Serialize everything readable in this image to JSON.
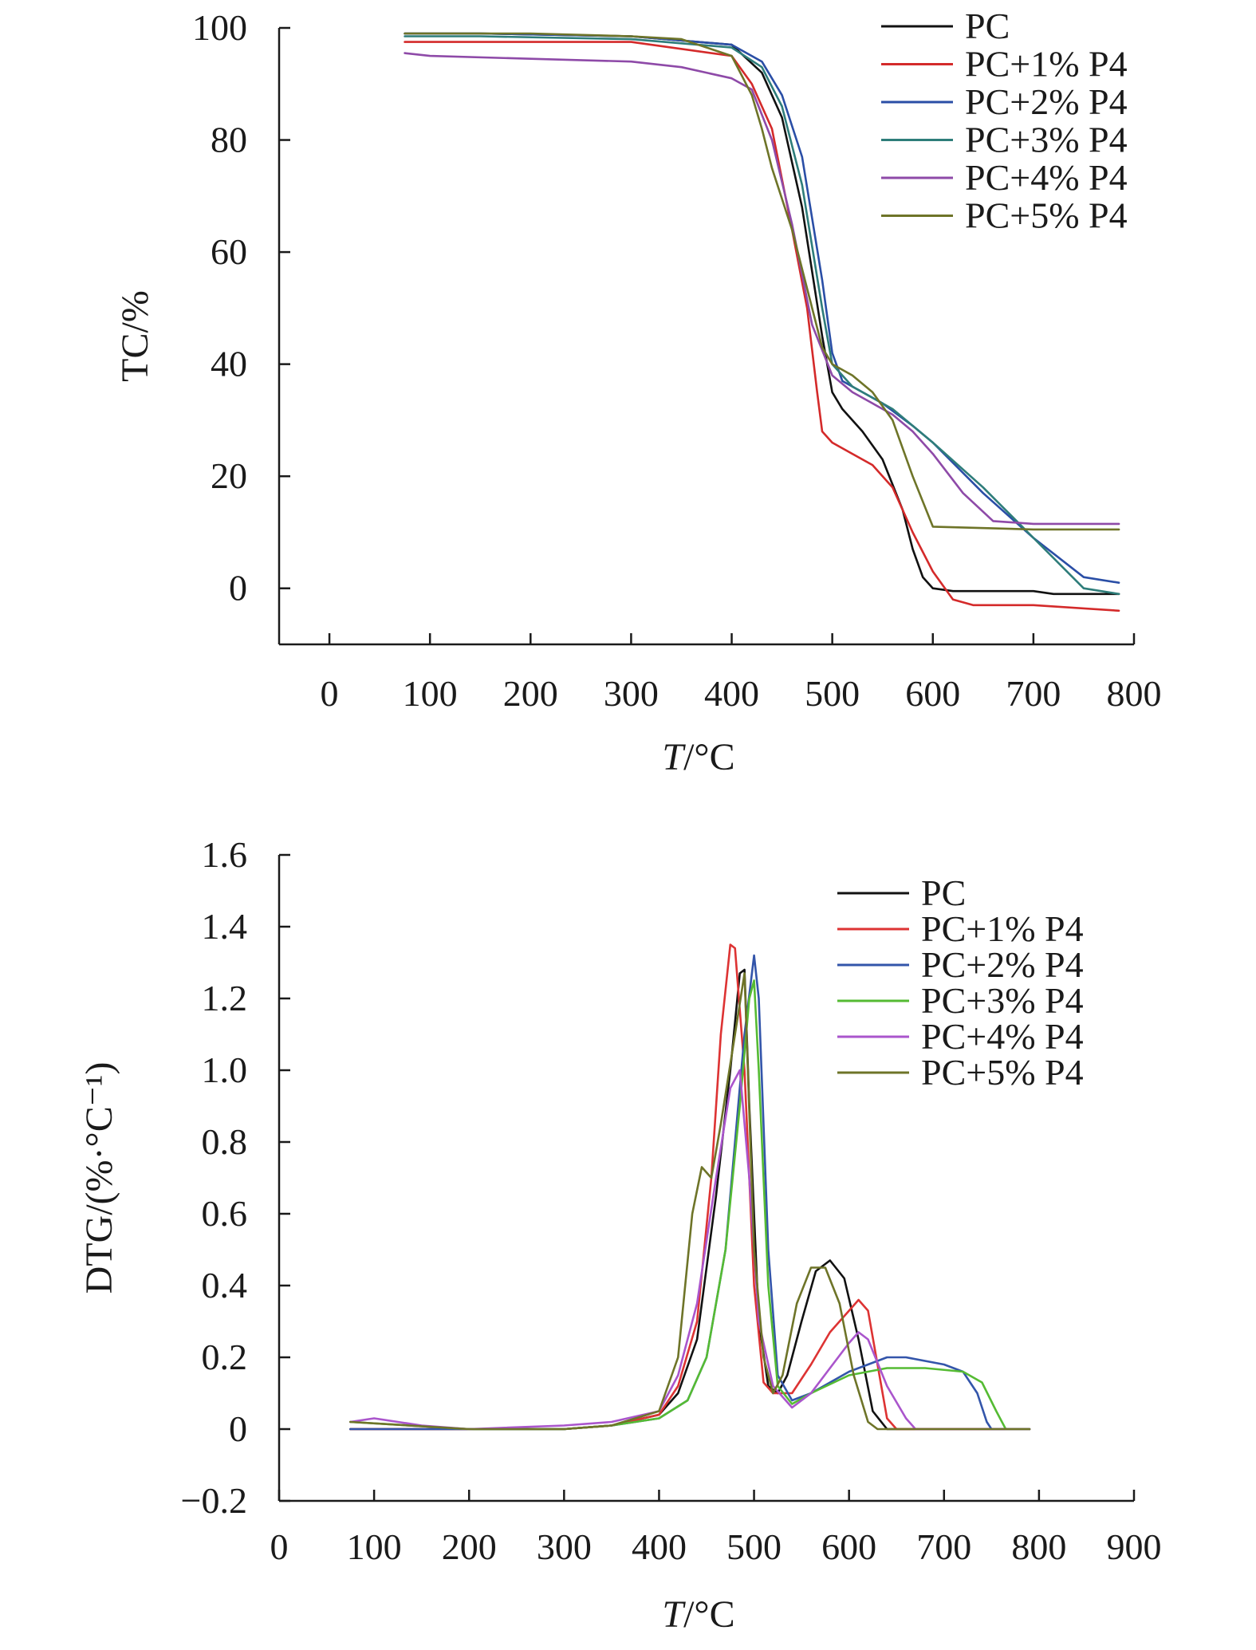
{
  "chart_data": [
    {
      "type": "line",
      "ylabel": "TC/%",
      "xlabel_italic": "T",
      "xlabel_unit": "/°C",
      "xlim": [
        -50,
        800
      ],
      "ylim": [
        -10,
        100
      ],
      "xticks": [
        0,
        100,
        200,
        300,
        400,
        500,
        600,
        700,
        800
      ],
      "yticks": [
        0,
        20,
        40,
        60,
        80,
        100
      ],
      "tick_labels_x": [
        "0",
        "100",
        "200",
        "300",
        "400",
        "500",
        "600",
        "700",
        "800"
      ],
      "tick_labels_y": [
        "0",
        "20",
        "40",
        "60",
        "80",
        "100"
      ],
      "legend_position": "top-right",
      "series": [
        {
          "name": "PC",
          "color": "#111111",
          "x": [
            75,
            150,
            300,
            400,
            430,
            450,
            470,
            490,
            500,
            510,
            530,
            550,
            570,
            580,
            590,
            600,
            620,
            700,
            720,
            785
          ],
          "y": [
            99,
            99,
            98.5,
            97,
            92,
            84,
            68,
            45,
            35,
            32,
            28,
            23,
            14,
            7,
            2,
            0,
            -0.5,
            -0.5,
            -1,
            -1
          ]
        },
        {
          "name": "PC+1% P4",
          "color": "#d42a2a",
          "x": [
            75,
            150,
            300,
            400,
            420,
            440,
            460,
            475,
            485,
            490,
            500,
            520,
            540,
            560,
            580,
            600,
            620,
            640,
            700,
            785
          ],
          "y": [
            97.5,
            97.5,
            97.5,
            95,
            90,
            82,
            64,
            50,
            35,
            28,
            26,
            24,
            22,
            18,
            10,
            3,
            -2,
            -3,
            -3,
            -4
          ]
        },
        {
          "name": "PC+2% P4",
          "color": "#2a4ea6",
          "x": [
            75,
            150,
            300,
            400,
            430,
            450,
            470,
            490,
            500,
            510,
            530,
            550,
            580,
            600,
            650,
            700,
            750,
            785
          ],
          "y": [
            99,
            99,
            98.5,
            97,
            94,
            88,
            77,
            55,
            42,
            37,
            35,
            33,
            29,
            26,
            17,
            9,
            2,
            1
          ]
        },
        {
          "name": "PC+3% P4",
          "color": "#2e7d7a",
          "x": [
            75,
            150,
            300,
            400,
            430,
            450,
            470,
            490,
            500,
            520,
            540,
            560,
            580,
            600,
            650,
            700,
            750,
            785
          ],
          "y": [
            98.5,
            98.5,
            98,
            96.5,
            93,
            86,
            72,
            50,
            40,
            36,
            34,
            32,
            29,
            26,
            18,
            9,
            0,
            -1
          ]
        },
        {
          "name": "PC+4% P4",
          "color": "#8e4aa8",
          "x": [
            75,
            100,
            200,
            300,
            350,
            400,
            420,
            440,
            460,
            480,
            500,
            520,
            540,
            560,
            580,
            600,
            630,
            660,
            700,
            785
          ],
          "y": [
            95.5,
            95,
            94.5,
            94,
            93,
            91,
            89,
            80,
            65,
            47,
            38,
            35,
            33,
            31,
            28,
            24,
            17,
            12,
            11.5,
            11.5
          ]
        },
        {
          "name": "PC+5% P4",
          "color": "#6e7428",
          "x": [
            75,
            200,
            300,
            350,
            400,
            420,
            430,
            440,
            460,
            480,
            490,
            500,
            520,
            540,
            560,
            580,
            600,
            700,
            785
          ],
          "y": [
            99,
            99,
            98.5,
            98,
            95,
            88,
            82,
            75,
            64,
            50,
            43,
            40,
            38,
            35,
            30,
            20,
            11,
            10.5,
            10.5
          ]
        }
      ]
    },
    {
      "type": "line",
      "ylabel": "DTG/(%·°C⁻¹)",
      "xlabel_italic": "T",
      "xlabel_unit": "/°C",
      "xlim": [
        0,
        900
      ],
      "ylim": [
        -0.2,
        1.6
      ],
      "xticks": [
        0,
        100,
        200,
        300,
        400,
        500,
        600,
        700,
        800,
        900
      ],
      "yticks": [
        -0.2,
        0,
        0.2,
        0.4,
        0.6,
        0.8,
        1.0,
        1.2,
        1.4,
        1.6
      ],
      "tick_labels_x": [
        "0",
        "100",
        "200",
        "300",
        "400",
        "500",
        "600",
        "700",
        "800",
        "900"
      ],
      "tick_labels_y": [
        "−0.2",
        "0",
        "0.2",
        "0.4",
        "0.6",
        "0.8",
        "1.0",
        "1.2",
        "1.4",
        "1.6"
      ],
      "legend_position": "top-right",
      "series": [
        {
          "name": "PC",
          "color": "#111111",
          "x": [
            75,
            200,
            300,
            350,
            400,
            420,
            440,
            460,
            475,
            485,
            490,
            495,
            505,
            515,
            525,
            535,
            550,
            565,
            580,
            595,
            610,
            625,
            640,
            790
          ],
          "y": [
            0,
            0,
            0,
            0.01,
            0.04,
            0.1,
            0.25,
            0.65,
            1.0,
            1.27,
            1.28,
            0.9,
            0.3,
            0.12,
            0.1,
            0.15,
            0.3,
            0.44,
            0.47,
            0.42,
            0.25,
            0.05,
            0,
            0
          ]
        },
        {
          "name": "PC+1% P4",
          "color": "#dd3333",
          "x": [
            75,
            200,
            300,
            350,
            400,
            420,
            440,
            455,
            465,
            475,
            480,
            490,
            500,
            510,
            520,
            540,
            560,
            580,
            600,
            610,
            620,
            630,
            640,
            650,
            790
          ],
          "y": [
            0,
            0,
            0,
            0.01,
            0.04,
            0.12,
            0.3,
            0.7,
            1.1,
            1.35,
            1.34,
            1.0,
            0.4,
            0.13,
            0.1,
            0.1,
            0.18,
            0.27,
            0.33,
            0.36,
            0.33,
            0.18,
            0.03,
            0,
            0
          ]
        },
        {
          "name": "PC+2% P4",
          "color": "#3355aa",
          "x": [
            75,
            200,
            300,
            350,
            400,
            430,
            450,
            470,
            480,
            490,
            500,
            505,
            515,
            525,
            540,
            560,
            600,
            640,
            660,
            700,
            720,
            735,
            745,
            750,
            790
          ],
          "y": [
            0,
            0,
            0,
            0.01,
            0.03,
            0.08,
            0.2,
            0.5,
            0.8,
            1.1,
            1.32,
            1.2,
            0.5,
            0.15,
            0.08,
            0.1,
            0.16,
            0.2,
            0.2,
            0.18,
            0.16,
            0.1,
            0.02,
            0,
            0
          ]
        },
        {
          "name": "PC+3% P4",
          "color": "#55bb33",
          "x": [
            75,
            200,
            300,
            350,
            400,
            430,
            450,
            470,
            485,
            495,
            500,
            505,
            515,
            525,
            540,
            560,
            600,
            640,
            680,
            720,
            740,
            755,
            765,
            770,
            790
          ],
          "y": [
            0.02,
            0,
            0,
            0.01,
            0.03,
            0.08,
            0.2,
            0.5,
            0.9,
            1.2,
            1.25,
            1.0,
            0.4,
            0.12,
            0.07,
            0.1,
            0.15,
            0.17,
            0.17,
            0.16,
            0.13,
            0.05,
            0,
            0,
            0
          ]
        },
        {
          "name": "PC+4% P4",
          "color": "#aa55cc",
          "x": [
            75,
            100,
            150,
            200,
            300,
            350,
            400,
            420,
            440,
            460,
            475,
            485,
            495,
            505,
            520,
            540,
            560,
            580,
            600,
            610,
            620,
            640,
            660,
            670,
            790
          ],
          "y": [
            0.02,
            0.03,
            0.01,
            0,
            0.01,
            0.02,
            0.05,
            0.15,
            0.35,
            0.7,
            0.95,
            1.0,
            0.7,
            0.3,
            0.12,
            0.06,
            0.1,
            0.17,
            0.24,
            0.27,
            0.25,
            0.12,
            0.03,
            0,
            0
          ]
        },
        {
          "name": "PC+5% P4",
          "color": "#6e7428",
          "x": [
            75,
            200,
            300,
            350,
            400,
            420,
            435,
            445,
            455,
            465,
            480,
            490,
            500,
            510,
            520,
            530,
            545,
            560,
            575,
            590,
            605,
            620,
            630,
            790
          ],
          "y": [
            0.02,
            0,
            0,
            0.01,
            0.05,
            0.2,
            0.6,
            0.73,
            0.7,
            0.85,
            1.1,
            1.27,
            0.5,
            0.2,
            0.1,
            0.15,
            0.35,
            0.45,
            0.45,
            0.35,
            0.15,
            0.02,
            0,
            0
          ]
        }
      ]
    }
  ]
}
